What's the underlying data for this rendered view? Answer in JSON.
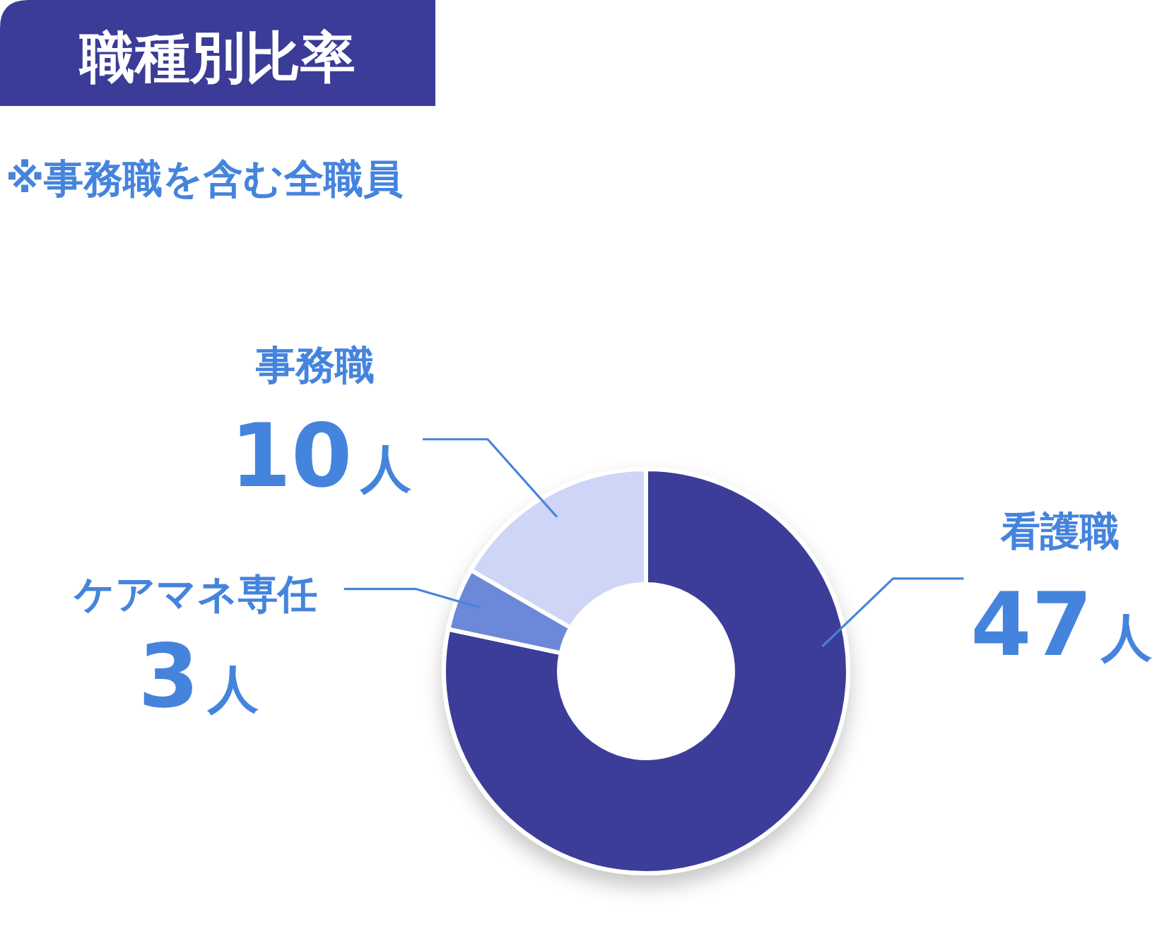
{
  "chart_data": {
    "type": "donut",
    "title": "職種別比率",
    "subtitle": "※事務職を含む全職員",
    "categories": [
      "看護職",
      "ケアマネ専任",
      "事務職"
    ],
    "values": [
      47,
      3,
      10
    ],
    "colors": [
      "#3a3c98",
      "#6c88d8",
      "#cfd5f6"
    ],
    "value_labels": [
      "47人",
      "3人",
      "10人"
    ]
  }
}
